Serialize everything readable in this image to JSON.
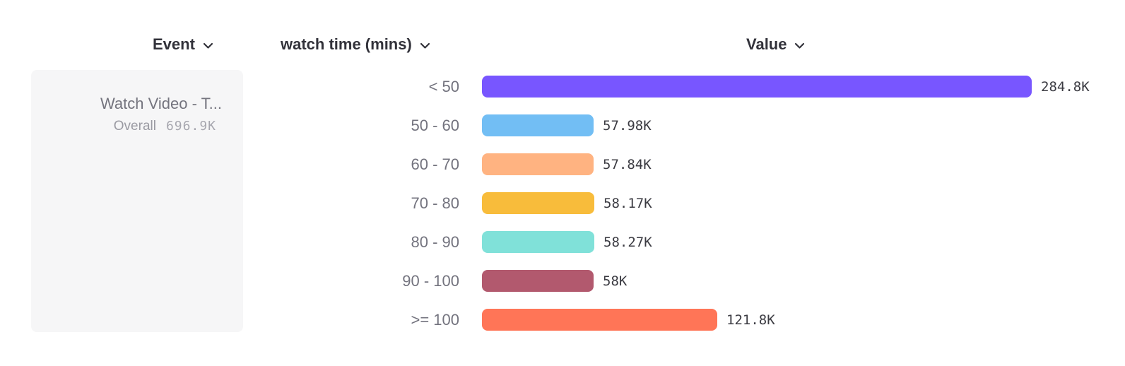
{
  "header": {
    "event_label": "Event",
    "breakdown_label": "watch time (mins)",
    "value_label": "Value"
  },
  "legend": {
    "event_name": "Watch Video - T...",
    "overall_label": "Overall",
    "overall_value": "696.9K"
  },
  "chart_data": {
    "type": "bar",
    "orientation": "horizontal",
    "title": "",
    "xlabel": "Value",
    "ylabel": "watch time (mins)",
    "categories": [
      "< 50",
      "50 - 60",
      "60 - 70",
      "70 - 80",
      "80 - 90",
      "90 - 100",
      ">= 100"
    ],
    "values": [
      284800,
      57980,
      57840,
      58170,
      58270,
      58000,
      121800
    ],
    "value_labels": [
      "284.8K",
      "57.98K",
      "57.84K",
      "58.17K",
      "58.27K",
      "58K",
      "121.8K"
    ],
    "bar_colors": [
      "#7856FF",
      "#72BEF4",
      "#FFB381",
      "#F8BC3B",
      "#80E1D9",
      "#B2596E",
      "#FF7557"
    ],
    "max_value": 284800,
    "total_label": "Overall",
    "total_value": 696900,
    "grid": false,
    "legend_position": "left"
  }
}
